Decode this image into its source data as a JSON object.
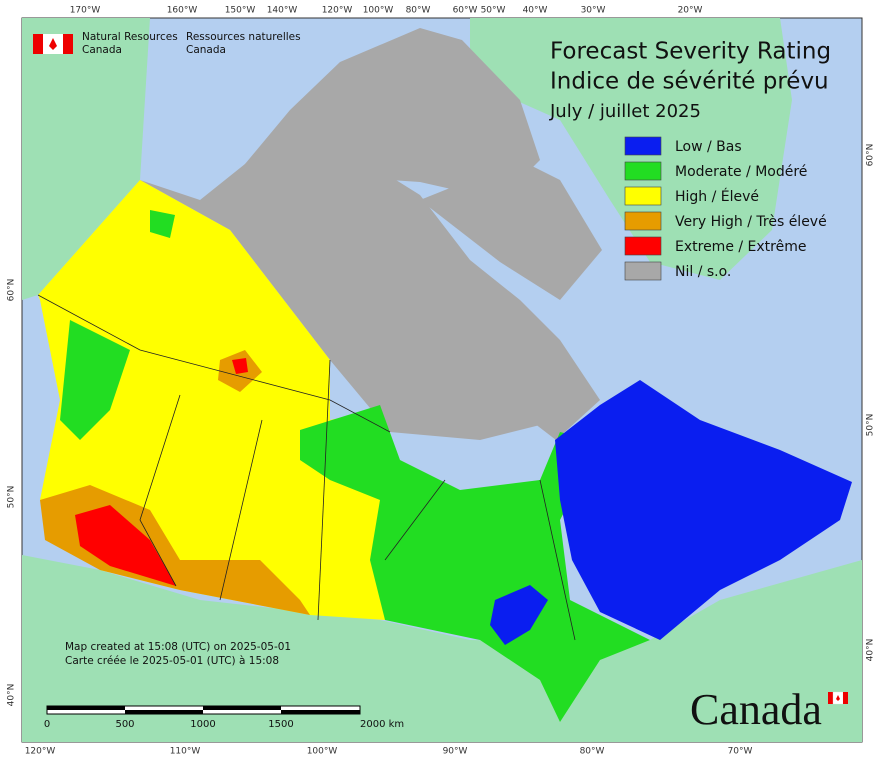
{
  "header": {
    "agency_en": [
      "Natural Resources",
      "Canada"
    ],
    "agency_fr": [
      "Ressources naturelles",
      "Canada"
    ]
  },
  "title": [
    "Forecast Severity Rating",
    "Indice de sévérité prévu",
    "July / juillet 2025"
  ],
  "legend": [
    {
      "label": "Low / Bas",
      "color": "#0a1ef0"
    },
    {
      "label": "Moderate / Modéré",
      "color": "#22dd22"
    },
    {
      "label": "High / Élevé",
      "color": "#ffff00"
    },
    {
      "label": "Very High / Très élevé",
      "color": "#e69c00"
    },
    {
      "label": "Extreme / Extrême",
      "color": "#ff0000"
    },
    {
      "label": "Nil / s.o.",
      "color": "#a8a8a8"
    }
  ],
  "graticule": {
    "top": [
      "170°W",
      "160°W",
      "150°W",
      "140°W",
      "120°W",
      "100°W",
      "80°W",
      "60°W",
      "50°W",
      "40°W",
      "30°W",
      "20°W"
    ],
    "bottom": [
      "120°W",
      "110°W",
      "100°W",
      "90°W",
      "80°W",
      "70°W"
    ],
    "left": [
      "60°N",
      "50°N",
      "40°N"
    ],
    "right": [
      "60°N",
      "50°N",
      "40°N"
    ]
  },
  "footer": [
    "Map created at 15:08 (UTC) on 2025-05-01",
    "Carte créée le 2025-05-01 (UTC) à 15:08"
  ],
  "scale_bar": [
    "0",
    "500",
    "1000",
    "1500",
    "2000  km"
  ],
  "wordmark": "Canada"
}
